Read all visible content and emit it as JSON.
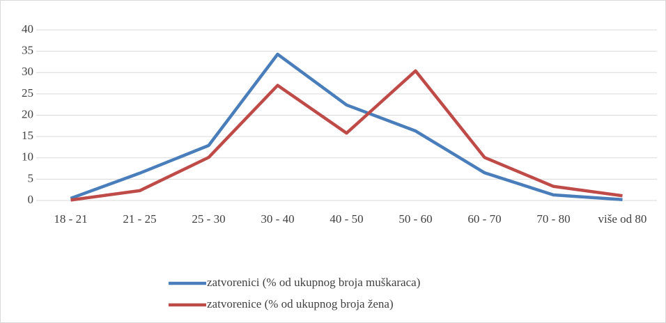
{
  "chart_data": {
    "type": "line",
    "categories": [
      "18 - 21",
      "21 - 25",
      "25 - 30",
      "30 - 40",
      "40 - 50",
      "50 - 60",
      "60 - 70",
      "70 - 80",
      "više od 80"
    ],
    "series": [
      {
        "name": "zatvorenici (% od ukupnog broja muškaraca)",
        "color": "#4a7ebb",
        "values": [
          0.5,
          6.4,
          12.9,
          34.3,
          22.4,
          16.3,
          6.5,
          1.3,
          0.2
        ]
      },
      {
        "name": "zatvorenice (% od ukupnog broja žena)",
        "color": "#be4b48",
        "values": [
          0.1,
          2.3,
          10.1,
          27,
          15.8,
          30.4,
          10.1,
          3.3,
          1.1
        ]
      }
    ],
    "ylim": [
      0,
      40
    ],
    "yticks": [
      0,
      5,
      10,
      15,
      20,
      25,
      30,
      35,
      40
    ],
    "grid": true,
    "legend": "bottom"
  }
}
